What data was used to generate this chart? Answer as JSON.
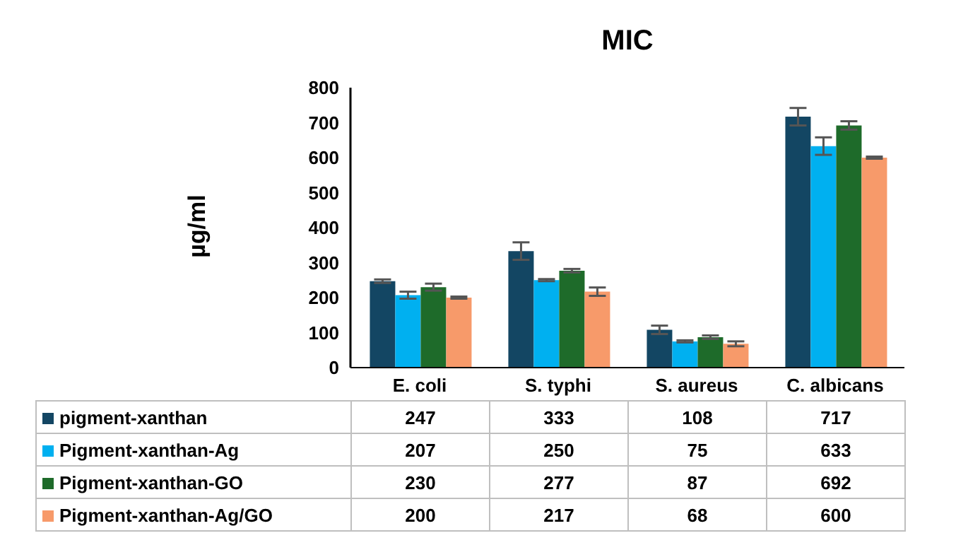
{
  "chart_data": {
    "type": "bar",
    "title": "MIC",
    "ylabel": "µg/ml",
    "categories": [
      "E. coli",
      "S. typhi",
      "S. aureus",
      "C. albicans"
    ],
    "series": [
      {
        "name": "pigment-xanthan",
        "color": "#134663",
        "values": [
          247,
          333,
          108,
          717
        ],
        "errors": [
          5,
          25,
          12,
          25
        ]
      },
      {
        "name": "Pigment-xanthan-Ag",
        "color": "#00b0f0",
        "values": [
          207,
          250,
          75,
          633
        ],
        "errors": [
          10,
          3,
          3,
          25
        ]
      },
      {
        "name": "Pigment-xanthan-GO",
        "color": "#1e6b2a",
        "values": [
          230,
          277,
          87,
          692
        ],
        "errors": [
          10,
          5,
          5,
          12
        ]
      },
      {
        "name": "Pigment-xanthan-Ag/GO",
        "color": "#f79a6a",
        "values": [
          200,
          217,
          68,
          600
        ],
        "errors": [
          3,
          12,
          7,
          3
        ]
      }
    ],
    "ylim": [
      0,
      800
    ],
    "yticks": [
      0,
      100,
      200,
      300,
      400,
      500,
      600,
      700,
      800
    ],
    "legend": "bottom",
    "data_labels": true
  }
}
